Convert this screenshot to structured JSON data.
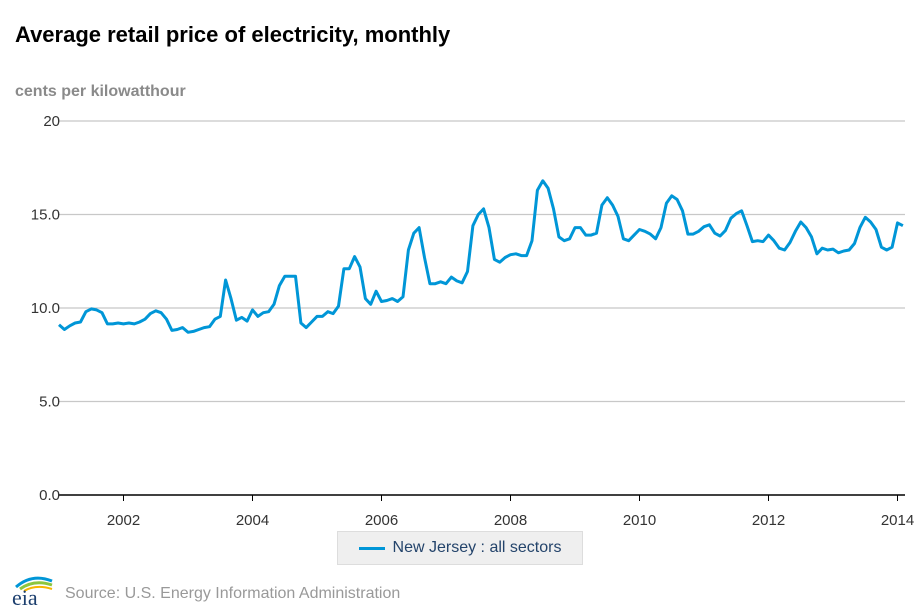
{
  "title": "Average retail price of electricity, monthly",
  "unit_label": "cents per kilowatthour",
  "source": "Source: U.S. Energy Information Administration",
  "logo_text": "eia",
  "colors": {
    "series": "#0096d7",
    "grid": "#c8c8c8",
    "axis": "#000000"
  },
  "chart_data": {
    "type": "line",
    "title": "Average retail price of electricity, monthly",
    "ylabel": "cents per kilowatthour",
    "xlabel": "",
    "ylim": [
      0,
      20
    ],
    "yticks": [
      "0.0",
      "5.0",
      "10.0",
      "15.0",
      "20"
    ],
    "xticks": [
      "2002",
      "2004",
      "2006",
      "2008",
      "2010",
      "2012",
      "2014"
    ],
    "xrange": [
      "2001-01",
      "2014-02"
    ],
    "grid": true,
    "legend": "bottom-center",
    "series": [
      {
        "name": "New Jersey : all sectors",
        "start": "2001-01",
        "frequency": "monthly",
        "values": [
          9.1,
          8.85,
          9.05,
          9.2,
          9.25,
          9.8,
          9.95,
          9.9,
          9.75,
          9.15,
          9.15,
          9.2,
          9.15,
          9.2,
          9.15,
          9.25,
          9.4,
          9.7,
          9.85,
          9.75,
          9.4,
          8.8,
          8.85,
          8.95,
          8.7,
          8.75,
          8.85,
          8.95,
          9.0,
          9.4,
          9.55,
          11.5,
          10.5,
          9.35,
          9.5,
          9.3,
          9.9,
          9.55,
          9.75,
          9.8,
          10.2,
          11.2,
          11.7,
          11.7,
          11.7,
          9.2,
          8.95,
          9.25,
          9.55,
          9.55,
          9.8,
          9.7,
          10.1,
          12.1,
          12.1,
          12.75,
          12.2,
          10.5,
          10.2,
          10.9,
          10.35,
          10.4,
          10.5,
          10.35,
          10.6,
          13.1,
          14.0,
          14.3,
          12.7,
          11.3,
          11.3,
          11.4,
          11.3,
          11.65,
          11.45,
          11.35,
          11.95,
          14.4,
          15.0,
          15.3,
          14.3,
          12.6,
          12.45,
          12.7,
          12.85,
          12.9,
          12.8,
          12.8,
          13.6,
          16.3,
          16.8,
          16.4,
          15.3,
          13.8,
          13.6,
          13.7,
          14.3,
          14.3,
          13.9,
          13.9,
          14.0,
          15.5,
          15.9,
          15.5,
          14.9,
          13.7,
          13.6,
          13.9,
          14.2,
          14.1,
          13.95,
          13.7,
          14.3,
          15.6,
          16.0,
          15.8,
          15.2,
          13.95,
          13.95,
          14.1,
          14.35,
          14.45,
          14.0,
          13.85,
          14.15,
          14.8,
          15.05,
          15.2,
          14.4,
          13.55,
          13.6,
          13.55,
          13.9,
          13.6,
          13.2,
          13.1,
          13.5,
          14.1,
          14.6,
          14.3,
          13.8,
          12.9,
          13.2,
          13.1,
          13.15,
          12.95,
          13.05,
          13.1,
          13.45,
          14.3,
          14.85,
          14.6,
          14.2,
          13.25,
          13.1,
          13.25,
          14.55,
          14.4
        ]
      }
    ]
  }
}
